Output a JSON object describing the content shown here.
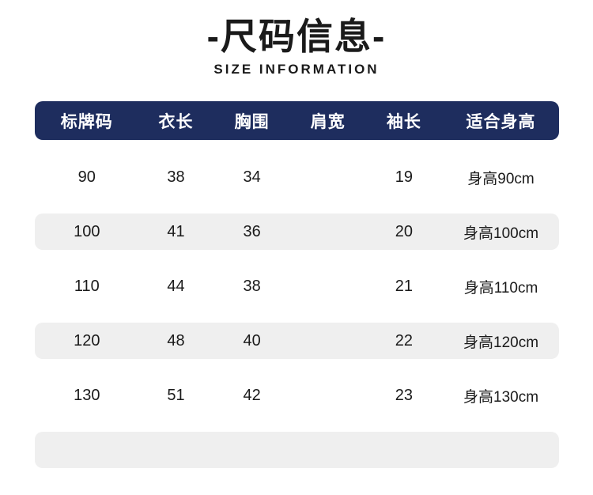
{
  "page": {
    "title": "-尺码信息-",
    "subtitle": "SIZE INFORMATION"
  },
  "colors": {
    "header_bg": "#1e2d5e",
    "header_text": "#ffffff",
    "alt_row_bg": "#efefef",
    "text": "#1a1a1a",
    "background": "#ffffff"
  },
  "table": {
    "headers": [
      "标牌码",
      "衣长",
      "胸围",
      "肩宽",
      "袖长",
      "适合身高"
    ],
    "rows": [
      [
        "90",
        "38",
        "34",
        "",
        "19",
        "身高90cm"
      ],
      [
        "100",
        "41",
        "36",
        "",
        "20",
        "身高100cm"
      ],
      [
        "110",
        "44",
        "38",
        "",
        "21",
        "身高110cm"
      ],
      [
        "120",
        "48",
        "40",
        "",
        "22",
        "身高120cm"
      ],
      [
        "130",
        "51",
        "42",
        "",
        "23",
        "身高130cm"
      ],
      [
        "",
        "",
        "",
        "",
        "",
        ""
      ]
    ]
  },
  "chart_data": {
    "type": "table",
    "title": "尺码信息 (SIZE INFORMATION)",
    "columns": [
      "标牌码",
      "衣长",
      "胸围",
      "肩宽",
      "袖长",
      "适合身高"
    ],
    "rows": [
      [
        "90",
        "38",
        "34",
        "",
        "19",
        "身高90cm"
      ],
      [
        "100",
        "41",
        "36",
        "",
        "20",
        "身高100cm"
      ],
      [
        "110",
        "44",
        "38",
        "",
        "21",
        "身高110cm"
      ],
      [
        "120",
        "48",
        "40",
        "",
        "22",
        "身高120cm"
      ],
      [
        "130",
        "51",
        "42",
        "",
        "23",
        "身高130cm"
      ]
    ],
    "layout_hints": {
      "header_style": "navy rounded bar, white bold text",
      "row_style": "alternating white / light-gray rounded bands",
      "empty_trailing_row": true,
      "shoulder_width_column_empty": true
    }
  }
}
